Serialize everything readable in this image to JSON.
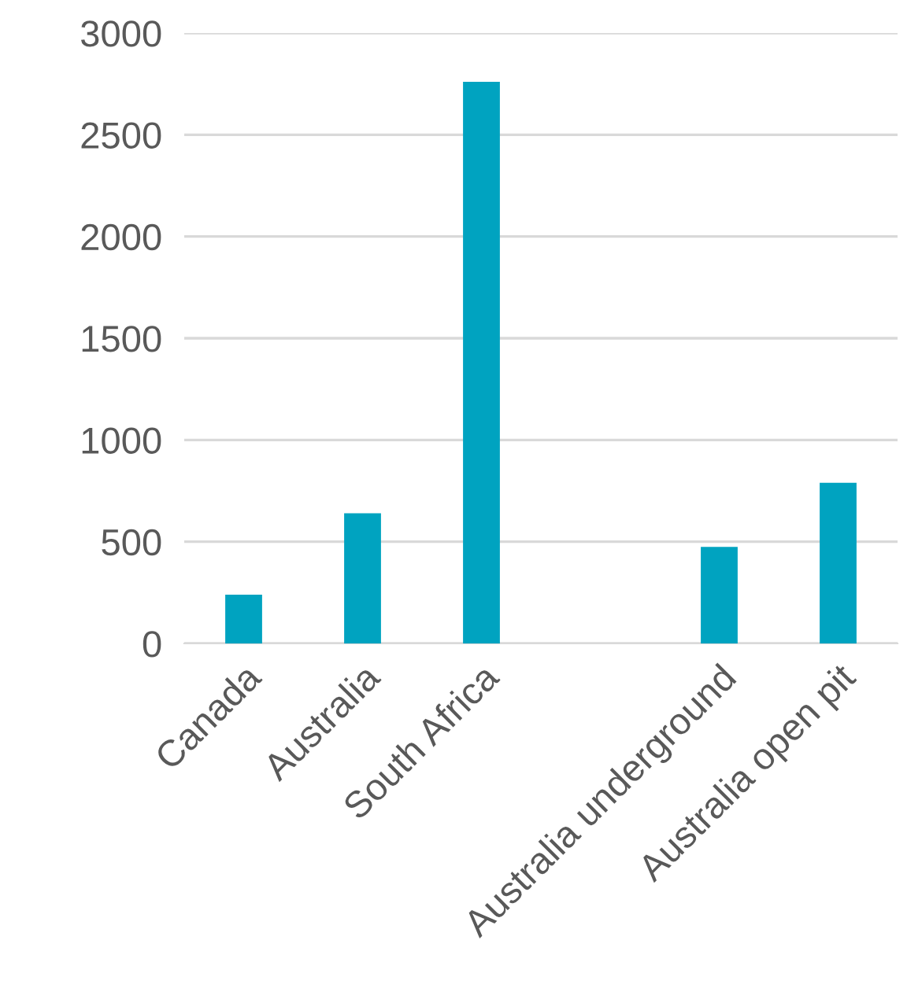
{
  "chart_data": {
    "type": "bar",
    "categories": [
      "Canada",
      "Australia",
      "South Africa",
      null,
      "Australia underground",
      "Australia open pit"
    ],
    "values": [
      240,
      640,
      2760,
      null,
      475,
      790
    ],
    "color": "#00a3c0",
    "ylim": [
      0,
      3000
    ],
    "yticks": [
      0,
      500,
      1000,
      1500,
      2000,
      2500,
      3000
    ],
    "grid": "y"
  }
}
